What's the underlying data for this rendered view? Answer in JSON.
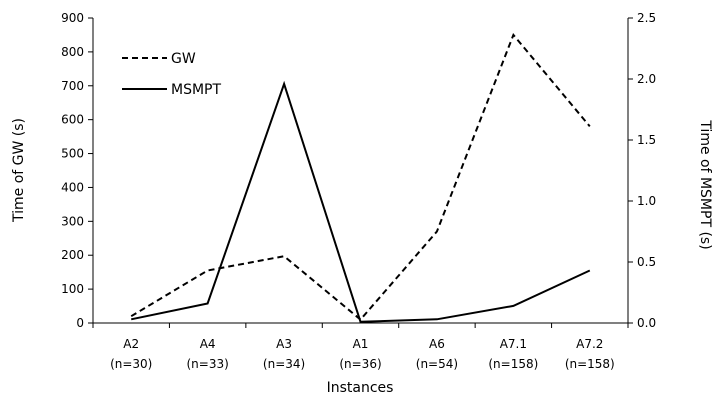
{
  "chart_data": {
    "type": "line",
    "categories": [
      "A2",
      "A4",
      "A3",
      "A1",
      "A6",
      "A7.1",
      "A7.2"
    ],
    "category_sublabels": [
      "(n=30)",
      "(n=33)",
      "(n=34)",
      "(n=36)",
      "(n=54)",
      "(n=158)",
      "(n=158)"
    ],
    "xlabel": "Instances",
    "ylabel_left": "Time of GW (s)",
    "ylabel_right": "Time of MSMPT (s)",
    "ylim_left": [
      0,
      900
    ],
    "ylim_right": [
      0,
      2.5
    ],
    "yticks_left": [
      "0",
      "100",
      "200",
      "300",
      "400",
      "500",
      "600",
      "700",
      "800",
      "900"
    ],
    "yticks_right": [
      "0.0",
      "0.5",
      "1.0",
      "1.5",
      "2.0",
      "2.5"
    ],
    "grid": false,
    "legend_position": "top-left",
    "series": [
      {
        "name": "GW",
        "axis": "left",
        "style": "dashed",
        "color": "#000000",
        "values": [
          20,
          155,
          197,
          10,
          270,
          850,
          580
        ]
      },
      {
        "name": "MSMPT",
        "axis": "right",
        "style": "solid",
        "color": "#000000",
        "values": [
          0.03,
          0.16,
          1.96,
          0.01,
          0.03,
          0.14,
          0.43
        ]
      }
    ]
  }
}
